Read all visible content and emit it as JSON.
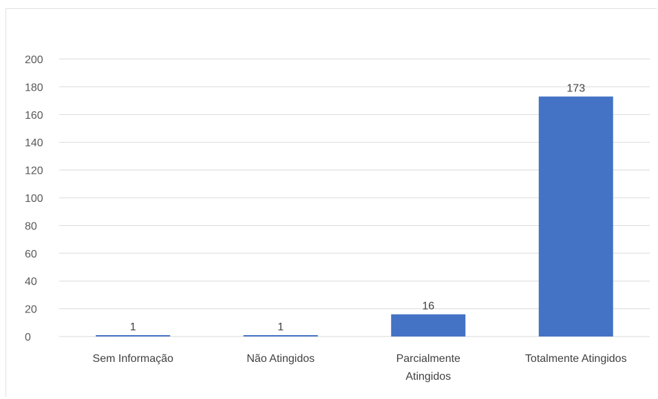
{
  "chart_data": {
    "type": "bar",
    "categories": [
      [
        "Sem Informação"
      ],
      [
        "Não Atingidos"
      ],
      [
        "Parcialmente",
        "Atingidos"
      ],
      [
        "Totalmente Atingidos"
      ]
    ],
    "values": [
      1,
      1,
      16,
      173
    ],
    "data_labels": [
      "1",
      "1",
      "16",
      "173"
    ],
    "ylim": [
      0,
      200
    ],
    "yticks": [
      0,
      20,
      40,
      60,
      80,
      100,
      120,
      140,
      160,
      180,
      200
    ],
    "grid": true,
    "legend": "none",
    "bar_color": "#4472C4",
    "grid_color": "#d9d9d9"
  }
}
